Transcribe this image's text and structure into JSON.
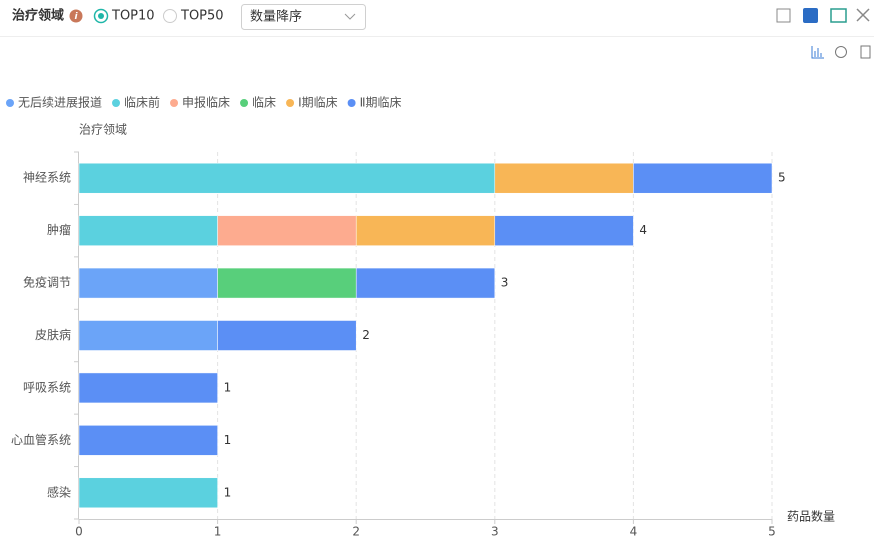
{
  "toolbar": {
    "title": "治疗领域",
    "options": [
      "TOP10",
      "TOP50"
    ],
    "sort": "数量降序"
  },
  "chart_data": {
    "type": "hbar-stacked",
    "y_label": "治疗领域",
    "x_label": "药品数量",
    "categories": [
      "神经系统",
      "肿瘤",
      "免疫调节",
      "皮肤病",
      "呼吸系统",
      "心血管系统",
      "感染"
    ],
    "series": [
      {
        "name": "无后续进展报道",
        "color": "#6ba4f8",
        "values": [
          0,
          0,
          1,
          1,
          0,
          0,
          0
        ]
      },
      {
        "name": "临床前",
        "color": "#5bd1df",
        "values": [
          3,
          1,
          0,
          0,
          0,
          0,
          1
        ]
      },
      {
        "name": "申报临床",
        "color": "#fdab8f",
        "values": [
          0,
          1,
          0,
          0,
          0,
          0,
          0
        ]
      },
      {
        "name": "临床",
        "color": "#58cf7b",
        "values": [
          0,
          0,
          1,
          0,
          0,
          0,
          0
        ]
      },
      {
        "name": "Ⅰ期临床",
        "color": "#f8b656",
        "values": [
          1,
          1,
          0,
          0,
          0,
          0,
          0
        ]
      },
      {
        "name": "Ⅱ期临床",
        "color": "#5b8ff5",
        "values": [
          1,
          1,
          1,
          1,
          1,
          1,
          0
        ]
      }
    ],
    "totals": [
      5,
      4,
      3,
      2,
      1,
      1,
      1
    ],
    "xlim": [
      0,
      5
    ],
    "xticks": [
      0,
      1,
      2,
      3,
      4,
      5
    ],
    "grid": true
  }
}
